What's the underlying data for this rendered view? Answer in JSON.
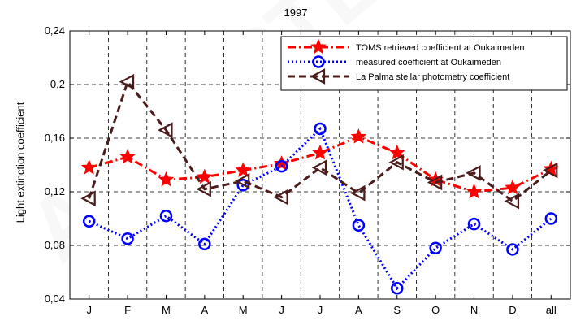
{
  "chart_data": {
    "type": "line",
    "title": "1997",
    "ylabel": "Light extinction coefficient",
    "xlabel": "",
    "categories": [
      "J",
      "F",
      "M",
      "A",
      "M",
      "J",
      "J",
      "A",
      "S",
      "O",
      "N",
      "D",
      "all"
    ],
    "yticks": [
      "0,04",
      "0,08",
      "0,12",
      "0,16",
      "0,2",
      "0,24"
    ],
    "ylim": [
      0.04,
      0.24
    ],
    "grid": true,
    "legend_position": "top-right",
    "series": [
      {
        "name": "TOMS retrieved coefficient at Oukaimeden",
        "color": "#ff0000",
        "marker": "star",
        "linestyle": "dash-dot",
        "values": [
          0.138,
          0.146,
          0.129,
          0.131,
          0.136,
          0.141,
          0.149,
          0.161,
          0.149,
          0.129,
          0.12,
          0.123,
          0.137
        ]
      },
      {
        "name": "measured coefficient at Oukaimeden",
        "color": "#0000ff",
        "marker": "circle",
        "linestyle": "dotted",
        "values": [
          0.098,
          0.085,
          0.102,
          0.081,
          0.125,
          0.139,
          0.167,
          0.095,
          0.048,
          0.078,
          0.096,
          0.077,
          0.1
        ]
      },
      {
        "name": "La Palma stellar photometry coefficient",
        "color": "#4a1c1c",
        "marker": "triangle-left",
        "linestyle": "dashed",
        "values": [
          0.115,
          0.202,
          0.166,
          0.122,
          0.128,
          0.116,
          0.138,
          0.119,
          0.142,
          0.127,
          0.134,
          0.113,
          0.136
        ]
      }
    ]
  }
}
